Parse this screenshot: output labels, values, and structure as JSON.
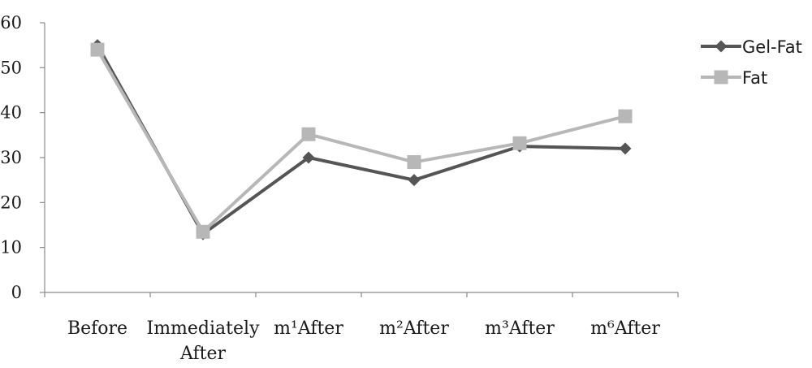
{
  "chart_data": {
    "type": "line",
    "categories": [
      [
        "Before"
      ],
      [
        "Immediately",
        "After"
      ],
      [
        "m¹After"
      ],
      [
        "m²After"
      ],
      [
        "m³After"
      ],
      [
        "m⁶After"
      ]
    ],
    "series": [
      {
        "name": "Gel-Fat",
        "values": [
          55,
          13,
          30,
          25,
          32.5,
          32
        ],
        "color": "#555555",
        "marker": "diamond"
      },
      {
        "name": "Fat",
        "values": [
          54,
          13.5,
          35.2,
          29,
          33.2,
          39.2
        ],
        "color": "#b7b7b7",
        "marker": "square"
      }
    ],
    "yticks": [
      0,
      10,
      20,
      30,
      40,
      50,
      60
    ],
    "ylim": [
      0,
      60
    ],
    "grid": false,
    "legend": "top-right",
    "title": "",
    "xlabel": "",
    "ylabel": ""
  }
}
